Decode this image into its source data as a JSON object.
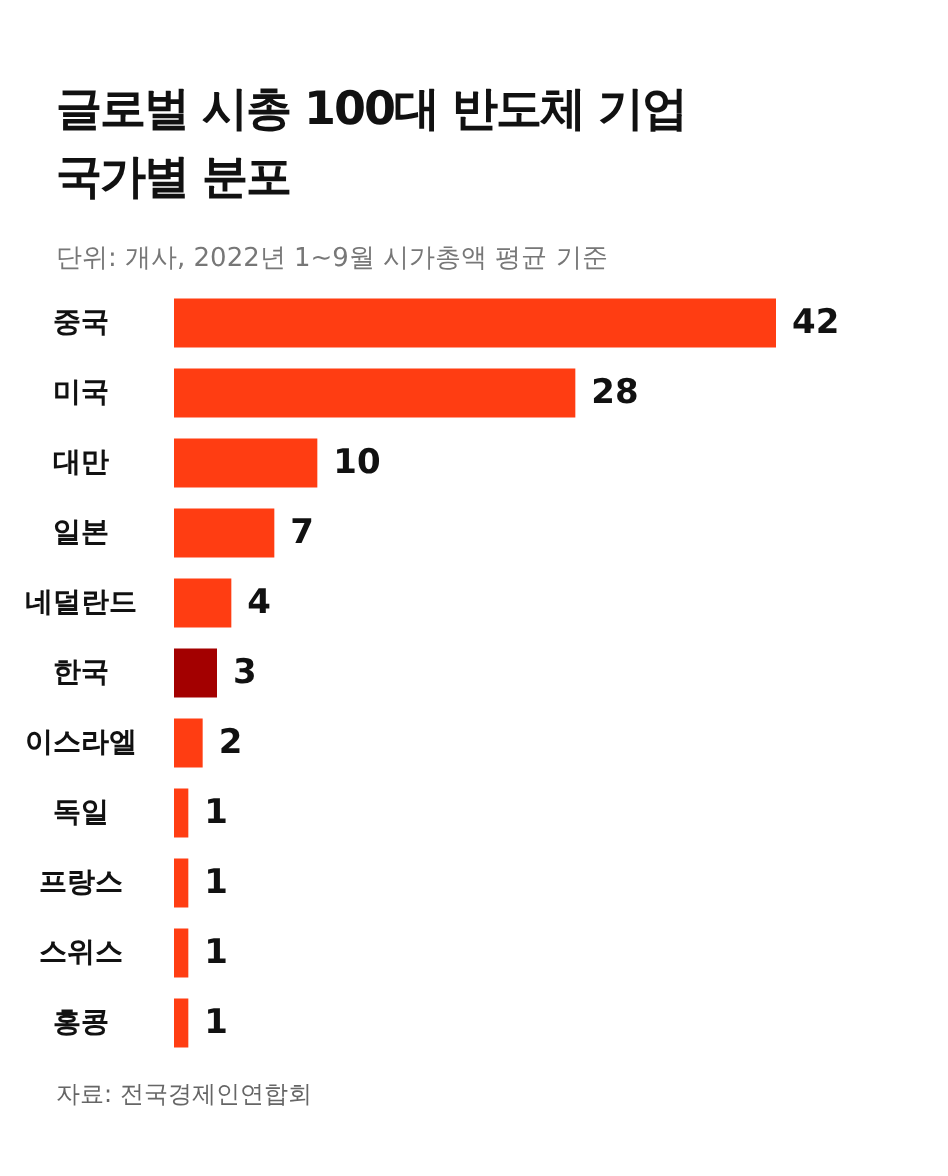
{
  "chart_data": {
    "type": "bar",
    "orientation": "horizontal",
    "title": "글로벌 시총 100대 반도체 기업 국가별 분포",
    "subtitle": "단위: 개사, 2022년 1~9월 시가총액 평균 기준",
    "categories": [
      "중국",
      "미국",
      "대만",
      "일본",
      "네덜란드",
      "한국",
      "이스라엘",
      "독일",
      "프랑스",
      "스위스",
      "홍콩"
    ],
    "values": [
      42,
      28,
      10,
      7,
      4,
      3,
      2,
      1,
      1,
      1,
      1
    ],
    "colors": [
      "#ff3d12",
      "#ff3d12",
      "#ff3d12",
      "#ff3d12",
      "#ff3d12",
      "#a30000",
      "#ff3d12",
      "#ff3d12",
      "#ff3d12",
      "#ff3d12",
      "#ff3d12"
    ],
    "data_labels": true,
    "tick_labels": "y",
    "annotations": [
      "자료: 전국경제인연합회"
    ]
  }
}
